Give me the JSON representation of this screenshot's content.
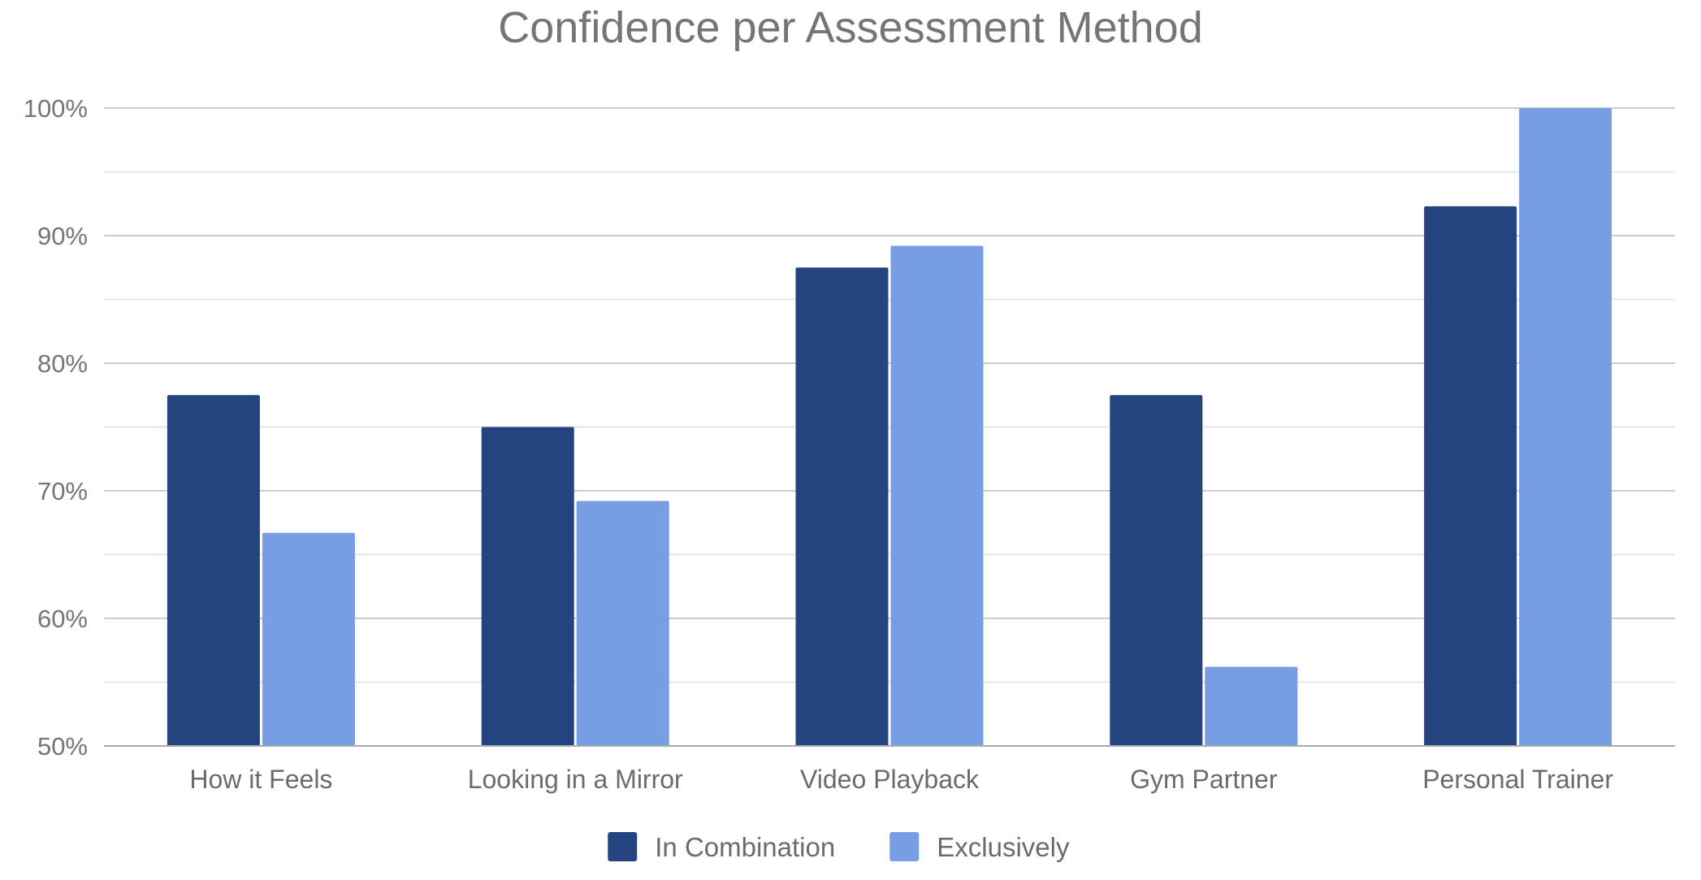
{
  "chart_data": {
    "type": "bar",
    "title": "Confidence per Assessment Method",
    "xlabel": "",
    "ylabel": "",
    "categories": [
      "How it Feels",
      "Looking in a Mirror",
      "Video Playback",
      "Gym Partner",
      "Personal Trainer"
    ],
    "series": [
      {
        "name": "In Combination",
        "color": "#24447f",
        "values": [
          77.5,
          75.0,
          87.5,
          77.5,
          92.3
        ]
      },
      {
        "name": "Exclusively",
        "color": "#779ee3",
        "values": [
          66.7,
          69.2,
          89.2,
          56.2,
          100.0
        ]
      }
    ],
    "ylim": [
      50,
      100
    ],
    "yticks": [
      50,
      60,
      70,
      80,
      90,
      100
    ],
    "ytick_labels": [
      "50%",
      "60%",
      "70%",
      "80%",
      "90%",
      "100%"
    ],
    "grid": true,
    "minor_grid": true,
    "legend_position": "bottom"
  }
}
